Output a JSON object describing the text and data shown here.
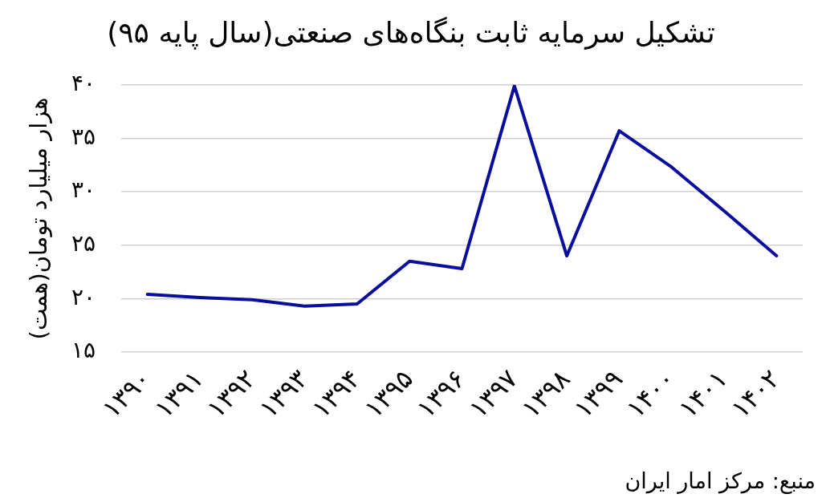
{
  "chart_data": {
    "type": "line",
    "title": "تشکیل سرمایه ثابت بنگاه‌های صنعتی(سال پایه ۹۵)",
    "ylabel": "هزار میلیارد تومان(همت)",
    "categories": [
      "۱۳۹۰",
      "۱۳۹۱",
      "۱۳۹۲",
      "۱۳۹۳",
      "۱۳۹۴",
      "۱۳۹۵",
      "۱۳۹۶",
      "۱۳۹۷",
      "۱۳۹۸",
      "۱۳۹۹",
      "۱۴۰۰",
      "۱۴۰۱",
      "۱۴۰۲"
    ],
    "values": [
      20.4,
      20.1,
      19.9,
      19.3,
      19.5,
      23.5,
      22.8,
      39.9,
      24.0,
      35.7,
      32.3,
      28.2,
      24.0
    ],
    "color": "#0a0e9c",
    "ylim": [
      15,
      40
    ],
    "yticks": [
      {
        "value": 15,
        "label": "۱۵"
      },
      {
        "value": 20,
        "label": "۲۰"
      },
      {
        "value": 25,
        "label": "۲۵"
      },
      {
        "value": 30,
        "label": "۳۰"
      },
      {
        "value": 35,
        "label": "۳۵"
      },
      {
        "value": 40,
        "label": "۴۰"
      }
    ],
    "grid": "y",
    "annotations": [
      "منبع: مرکز امار ایران"
    ]
  }
}
